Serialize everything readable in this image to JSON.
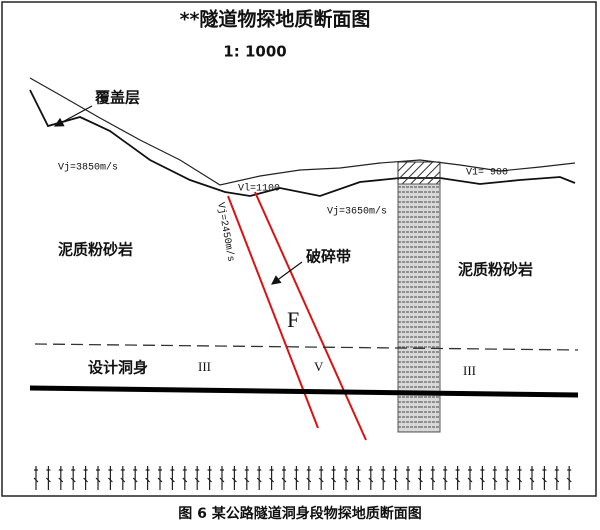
{
  "header": {
    "title": "**隧道物探地质断面图",
    "scale": "1: 1000"
  },
  "labels": {
    "cover": "覆盖层",
    "vj_left": "Vj=3850m/s",
    "vl_mid": "Vl=1100",
    "vj_fault": "Vj=2450m/s",
    "vj_right": "Vj=3650m/s",
    "vl_right": "V1= 900",
    "rock_left": "泥质粉砂岩",
    "fracture": "破碎带",
    "rock_right": "泥质粉砂岩",
    "fault": "F",
    "tunnel": "设计洞身",
    "grade_left": "III",
    "grade_mid": "V",
    "grade_right": "III"
  },
  "caption": "图 6  某公路隧道洞身段物探地质断面图"
}
